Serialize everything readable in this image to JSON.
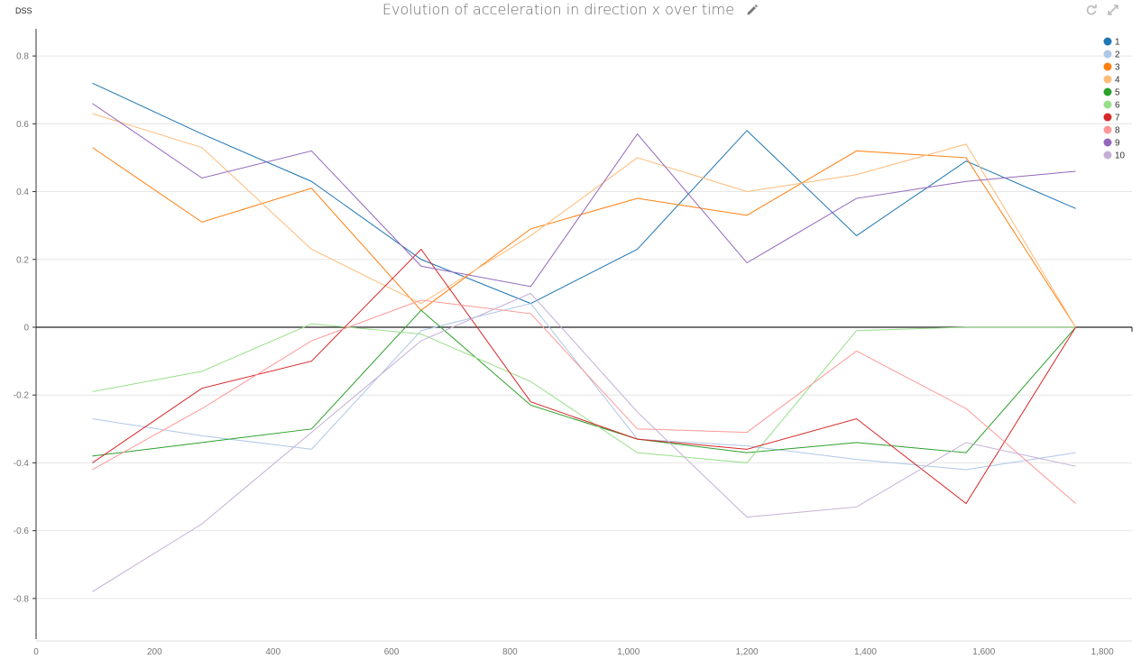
{
  "header": {
    "title": "Evolution of acceleration in direction x over time",
    "edit_icon": "pencil-icon",
    "refresh_icon": "refresh-icon",
    "expand_icon": "expand-icon"
  },
  "chart_data": {
    "type": "line",
    "title": "Evolution of acceleration in direction x over time",
    "xlabel": "",
    "ylabel": "DSS",
    "xlim": [
      0,
      1850
    ],
    "ylim": [
      -0.92,
      0.88
    ],
    "x_ticks": [
      0,
      200,
      400,
      600,
      800,
      1000,
      1200,
      1400,
      1600,
      1800
    ],
    "x_tick_labels": [
      "0",
      "200",
      "400",
      "600",
      "800",
      "1,000",
      "1,200",
      "1,400",
      "1,600",
      "1,800"
    ],
    "y_ticks": [
      -0.8,
      -0.6,
      -0.4,
      -0.2,
      0,
      0.2,
      0.4,
      0.6,
      0.8
    ],
    "y_tick_labels": [
      "-0.8",
      "-0.6",
      "-0.4",
      "-0.2",
      "0",
      "0.2",
      "0.4",
      "0.6",
      "0.8"
    ],
    "grid": true,
    "legend_position": "top-right",
    "x": [
      95,
      280,
      465,
      650,
      835,
      1015,
      1200,
      1385,
      1570,
      1755
    ],
    "series": [
      {
        "name": "1",
        "color": "#1f77b4",
        "values": [
          0.72,
          0.57,
          0.43,
          0.2,
          0.07,
          0.23,
          0.58,
          0.27,
          0.49,
          0.35
        ]
      },
      {
        "name": "2",
        "color": "#aec7e8",
        "values": [
          -0.27,
          -0.32,
          -0.36,
          -0.01,
          0.07,
          -0.33,
          -0.35,
          -0.39,
          -0.42,
          -0.37
        ]
      },
      {
        "name": "3",
        "color": "#ff7f0e",
        "values": [
          0.53,
          0.31,
          0.41,
          0.05,
          0.29,
          0.38,
          0.33,
          0.52,
          0.5,
          0.0
        ]
      },
      {
        "name": "4",
        "color": "#ffbb78",
        "values": [
          0.63,
          0.53,
          0.23,
          0.07,
          0.27,
          0.5,
          0.4,
          0.45,
          0.54,
          0.0
        ]
      },
      {
        "name": "5",
        "color": "#2ca02c",
        "values": [
          -0.38,
          -0.34,
          -0.3,
          0.05,
          -0.23,
          -0.33,
          -0.37,
          -0.34,
          -0.37,
          0.0
        ]
      },
      {
        "name": "6",
        "color": "#98df8a",
        "values": [
          -0.19,
          -0.13,
          0.01,
          -0.02,
          -0.16,
          -0.37,
          -0.4,
          -0.01,
          0.0,
          0.0
        ]
      },
      {
        "name": "7",
        "color": "#d62728",
        "values": [
          -0.4,
          -0.18,
          -0.1,
          0.23,
          -0.22,
          -0.33,
          -0.36,
          -0.27,
          -0.52,
          0.0
        ]
      },
      {
        "name": "8",
        "color": "#ff9896",
        "values": [
          -0.42,
          -0.24,
          -0.04,
          0.08,
          0.04,
          -0.3,
          -0.31,
          -0.07,
          -0.24,
          -0.52
        ]
      },
      {
        "name": "9",
        "color": "#9467bd",
        "values": [
          0.66,
          0.44,
          0.52,
          0.18,
          0.12,
          0.57,
          0.19,
          0.38,
          0.43,
          0.46
        ]
      },
      {
        "name": "10",
        "color": "#c5b0d5",
        "values": [
          -0.78,
          -0.58,
          -0.31,
          -0.04,
          0.1,
          -0.25,
          -0.56,
          -0.53,
          -0.34,
          -0.41
        ]
      }
    ]
  }
}
